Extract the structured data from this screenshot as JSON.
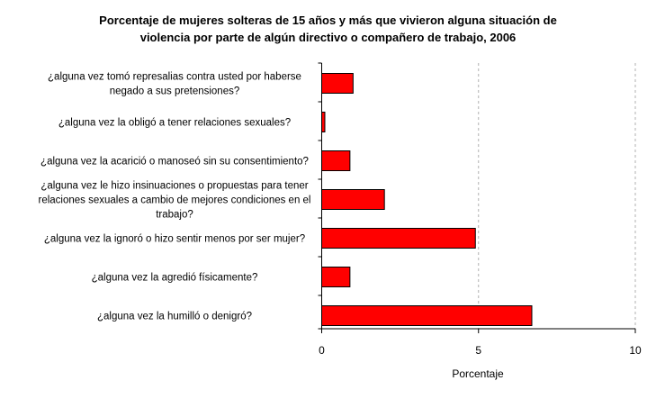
{
  "chart_data": {
    "type": "bar",
    "orientation": "horizontal",
    "title_lines": [
      "Porcentaje de mujeres solteras de 15 años y más que vivieron alguna situación de",
      "violencia por parte de algún directivo o compañero de trabajo, 2006"
    ],
    "xlabel": "Porcentaje",
    "ylabel": "",
    "xlim": [
      0,
      10
    ],
    "xticks": [
      0,
      5,
      10
    ],
    "grid": "vertical dashed",
    "bar_color": "#ff0000",
    "categories": [
      [
        "¿alguna vez tomó represalias contra usted por haberse",
        "negado a sus pretensiones?"
      ],
      [
        "¿alguna vez la obligó a tener relaciones sexuales?"
      ],
      [
        "¿alguna vez la acarició o manoseó sin su consentimiento?"
      ],
      [
        "¿alguna vez le hizo insinuaciones o propuestas para tener",
        "relaciones sexuales a cambio de mejores condiciones en el",
        "trabajo?"
      ],
      [
        "¿alguna vez la ignoró o hizo sentir menos por ser mujer?"
      ],
      [
        "¿alguna vez la agredió físicamente?"
      ],
      [
        "¿alguna vez la humilló o denigró?"
      ]
    ],
    "values": [
      1.0,
      0.1,
      0.9,
      2.0,
      4.9,
      0.9,
      6.7
    ]
  }
}
